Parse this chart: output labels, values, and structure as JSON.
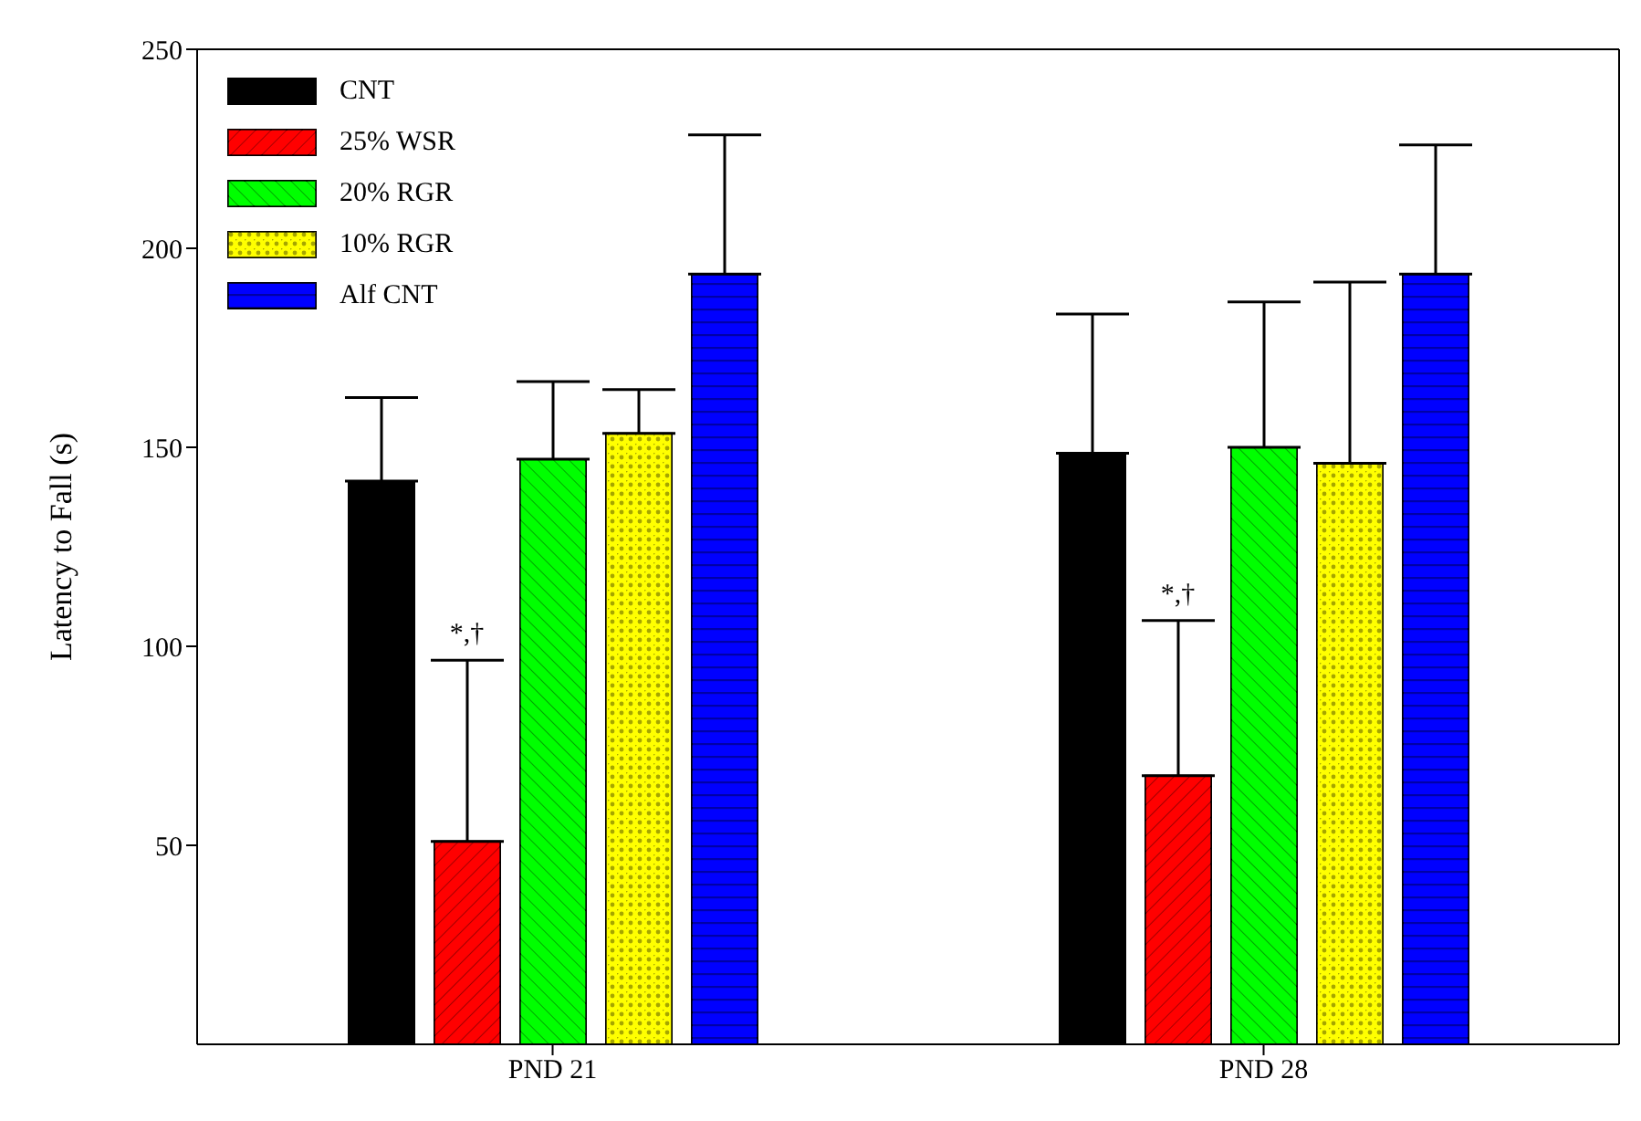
{
  "chart_data": {
    "type": "bar",
    "ylabel": "Latency to Fall (s)",
    "categories": [
      "PND 21",
      "PND 28"
    ],
    "series": [
      {
        "name": "CNT",
        "color": "#000000",
        "values": [
          141.5,
          148.5
        ],
        "errors": [
          [
            141.5,
            162.5
          ],
          [
            148.5,
            183.5
          ]
        ]
      },
      {
        "name": "25% WSR",
        "color": "#ff0000",
        "values": [
          51,
          67.5
        ],
        "errors": [
          [
            51,
            96.5
          ],
          [
            67.5,
            106.5
          ]
        ]
      },
      {
        "name": "20% RGR",
        "color": "#00ff00",
        "values": [
          147,
          150
        ],
        "errors": [
          [
            147,
            166.5
          ],
          [
            150,
            186.5
          ]
        ]
      },
      {
        "name": "10% RGR",
        "color": "#ffff00",
        "values": [
          153.5,
          146
        ],
        "errors": [
          [
            153.5,
            164.5
          ],
          [
            146,
            191.5
          ]
        ]
      },
      {
        "name": "Alf CNT",
        "color": "#0000ff",
        "values": [
          193.5,
          193.5
        ],
        "errors": [
          [
            193.5,
            228.5
          ],
          [
            193.5,
            226
          ]
        ]
      }
    ],
    "ylim": [
      0,
      250
    ],
    "yticks": [
      50,
      100,
      150,
      200,
      250
    ],
    "grid": false,
    "legend": "top left",
    "annotations": [
      "*,†",
      "*,†"
    ]
  }
}
